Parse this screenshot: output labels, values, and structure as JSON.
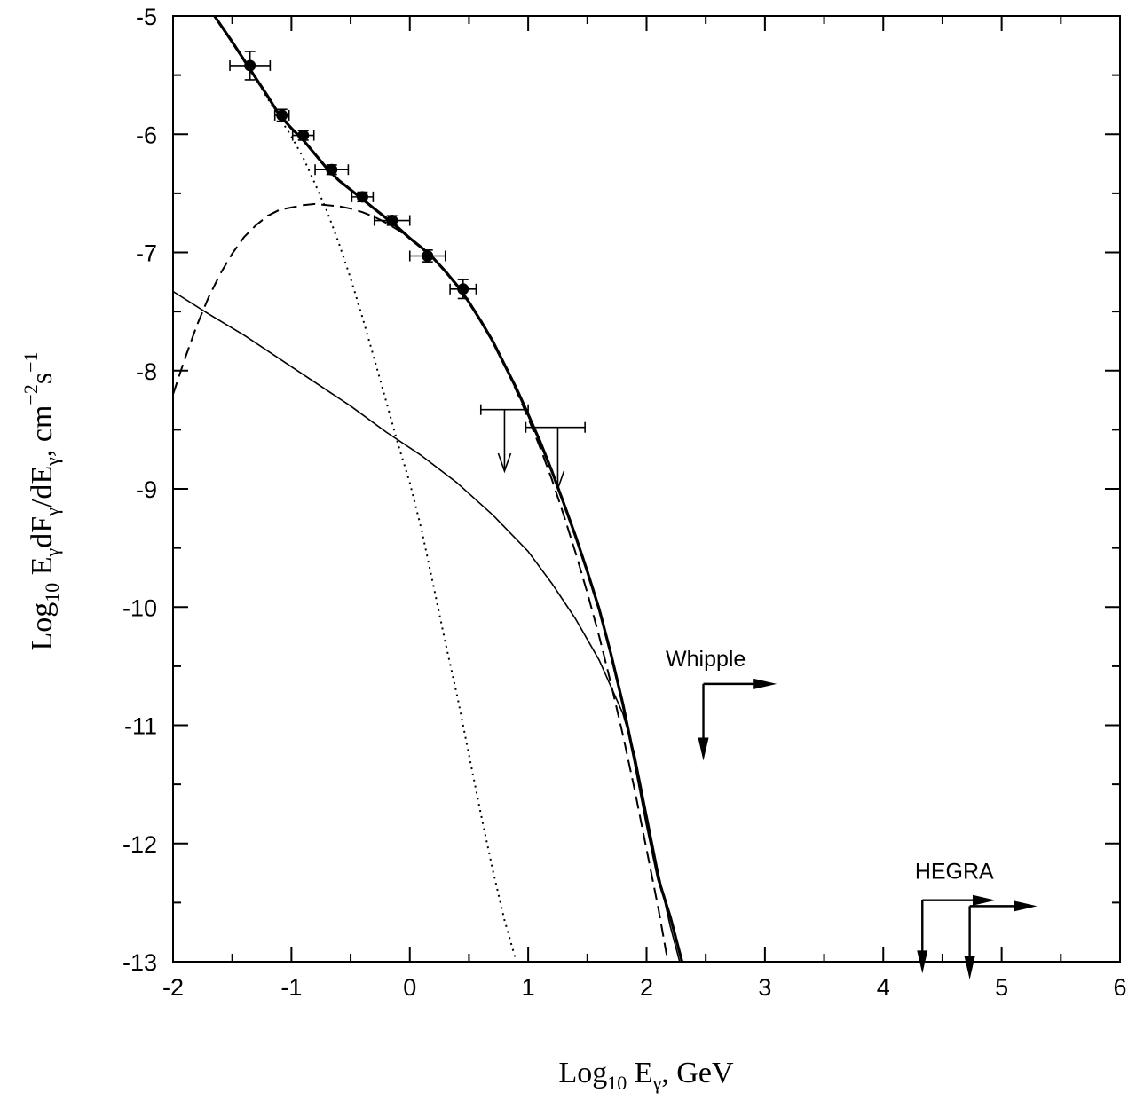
{
  "chart_data": {
    "type": "line",
    "xlabel": {
      "base": "Log",
      "sub": "10",
      "rest": " E",
      "gsub": "γ",
      "tail": ",  GeV"
    },
    "ylabel": {
      "p1": "Log",
      "s1": "10",
      "p2": "  E",
      "s2": "γ",
      "p3": "dF",
      "s3": "γ",
      "p4": "/dE",
      "s4": "γ",
      "p5": ",  cm",
      "e1": "−2",
      "p6": "s",
      "e2": "−1"
    },
    "xlim": [
      -2,
      6
    ],
    "ylim": [
      -13,
      -5
    ],
    "x_ticks": [
      -2,
      -1,
      0,
      1,
      2,
      3,
      4,
      5,
      6
    ],
    "x_tick_labels": [
      "-2",
      "-1",
      "0",
      "1",
      "2",
      "3",
      "4",
      "5",
      "6"
    ],
    "y_ticks": [
      -5,
      -6,
      -7,
      -8,
      -9,
      -10,
      -11,
      -12,
      -13
    ],
    "y_tick_labels": [
      "-5",
      "-6",
      "-7",
      "-8",
      "-9",
      "-10",
      "-11",
      "-12",
      "-13"
    ],
    "series": [
      {
        "style": "thick-solid",
        "points": [
          [
            -1.65,
            -5.0
          ],
          [
            -1.5,
            -5.22
          ],
          [
            -1.35,
            -5.45
          ],
          [
            -1.2,
            -5.68
          ],
          [
            -1.1,
            -5.84
          ],
          [
            -1.0,
            -5.95
          ],
          [
            -0.9,
            -6.05
          ],
          [
            -0.8,
            -6.17
          ],
          [
            -0.7,
            -6.29
          ],
          [
            -0.6,
            -6.39
          ],
          [
            -0.5,
            -6.47
          ],
          [
            -0.4,
            -6.55
          ],
          [
            -0.3,
            -6.63
          ],
          [
            -0.2,
            -6.71
          ],
          [
            -0.1,
            -6.79
          ],
          [
            0.0,
            -6.88
          ],
          [
            0.1,
            -6.96
          ],
          [
            0.2,
            -7.05
          ],
          [
            0.3,
            -7.16
          ],
          [
            0.4,
            -7.28
          ],
          [
            0.5,
            -7.42
          ],
          [
            0.6,
            -7.58
          ],
          [
            0.7,
            -7.75
          ],
          [
            0.8,
            -7.95
          ],
          [
            0.9,
            -8.15
          ],
          [
            1.0,
            -8.37
          ],
          [
            1.1,
            -8.6
          ],
          [
            1.2,
            -8.85
          ],
          [
            1.3,
            -9.12
          ],
          [
            1.4,
            -9.4
          ],
          [
            1.5,
            -9.7
          ],
          [
            1.6,
            -10.02
          ],
          [
            1.7,
            -10.4
          ],
          [
            1.8,
            -10.82
          ],
          [
            1.9,
            -11.3
          ],
          [
            2.0,
            -11.82
          ],
          [
            2.1,
            -12.3
          ],
          [
            2.2,
            -12.62
          ],
          [
            2.3,
            -13.0
          ]
        ]
      },
      {
        "style": "dotted",
        "points": [
          [
            -1.65,
            -5.0
          ],
          [
            -1.5,
            -5.22
          ],
          [
            -1.35,
            -5.45
          ],
          [
            -1.2,
            -5.7
          ],
          [
            -1.1,
            -5.86
          ],
          [
            -1.0,
            -6.02
          ],
          [
            -0.9,
            -6.2
          ],
          [
            -0.8,
            -6.42
          ],
          [
            -0.7,
            -6.65
          ],
          [
            -0.6,
            -6.92
          ],
          [
            -0.5,
            -7.22
          ],
          [
            -0.4,
            -7.55
          ],
          [
            -0.3,
            -7.9
          ],
          [
            -0.2,
            -8.26
          ],
          [
            -0.1,
            -8.62
          ],
          [
            0.0,
            -8.95
          ],
          [
            0.1,
            -9.35
          ],
          [
            0.2,
            -9.82
          ],
          [
            0.3,
            -10.3
          ],
          [
            0.4,
            -10.75
          ],
          [
            0.5,
            -11.25
          ],
          [
            0.6,
            -11.75
          ],
          [
            0.7,
            -12.22
          ],
          [
            0.8,
            -12.65
          ],
          [
            0.9,
            -13.0
          ]
        ]
      },
      {
        "style": "dashed",
        "points": [
          [
            -2.0,
            -8.2
          ],
          [
            -1.9,
            -7.9
          ],
          [
            -1.8,
            -7.62
          ],
          [
            -1.7,
            -7.38
          ],
          [
            -1.6,
            -7.18
          ],
          [
            -1.5,
            -7.01
          ],
          [
            -1.4,
            -6.87
          ],
          [
            -1.3,
            -6.77
          ],
          [
            -1.2,
            -6.69
          ],
          [
            -1.1,
            -6.64
          ],
          [
            -1.0,
            -6.62
          ],
          [
            -0.9,
            -6.6
          ],
          [
            -0.8,
            -6.59
          ],
          [
            -0.7,
            -6.6
          ],
          [
            -0.6,
            -6.61
          ],
          [
            -0.5,
            -6.63
          ],
          [
            -0.4,
            -6.66
          ],
          [
            -0.3,
            -6.7
          ],
          [
            -0.2,
            -6.75
          ],
          [
            -0.1,
            -6.81
          ],
          [
            0.0,
            -6.88
          ],
          [
            0.1,
            -6.96
          ],
          [
            0.2,
            -7.05
          ],
          [
            0.3,
            -7.16
          ],
          [
            0.4,
            -7.28
          ],
          [
            0.5,
            -7.42
          ],
          [
            0.6,
            -7.58
          ],
          [
            0.7,
            -7.75
          ],
          [
            0.8,
            -7.95
          ],
          [
            0.9,
            -8.17
          ],
          [
            1.0,
            -8.4
          ],
          [
            1.1,
            -8.65
          ],
          [
            1.2,
            -8.92
          ],
          [
            1.3,
            -9.22
          ],
          [
            1.4,
            -9.54
          ],
          [
            1.5,
            -9.88
          ],
          [
            1.6,
            -10.25
          ],
          [
            1.7,
            -10.65
          ],
          [
            1.8,
            -11.08
          ],
          [
            1.9,
            -11.55
          ],
          [
            2.0,
            -12.05
          ],
          [
            2.1,
            -12.55
          ],
          [
            2.18,
            -13.0
          ]
        ]
      },
      {
        "style": "thin-solid",
        "points": [
          [
            -2.0,
            -7.33
          ],
          [
            -1.7,
            -7.52
          ],
          [
            -1.4,
            -7.7
          ],
          [
            -1.1,
            -7.9
          ],
          [
            -0.8,
            -8.1
          ],
          [
            -0.5,
            -8.3
          ],
          [
            -0.2,
            -8.52
          ],
          [
            0.1,
            -8.72
          ],
          [
            0.4,
            -8.95
          ],
          [
            0.7,
            -9.22
          ],
          [
            1.0,
            -9.53
          ],
          [
            1.2,
            -9.8
          ],
          [
            1.4,
            -10.1
          ],
          [
            1.6,
            -10.45
          ],
          [
            1.8,
            -10.9
          ],
          [
            1.9,
            -11.25
          ],
          [
            2.0,
            -11.75
          ],
          [
            2.1,
            -12.25
          ],
          [
            2.2,
            -12.7
          ],
          [
            2.28,
            -13.0
          ]
        ]
      }
    ],
    "data_points": [
      {
        "x": -1.35,
        "y": -5.42,
        "xerr": 0.17,
        "yerr": 0.12
      },
      {
        "x": -1.08,
        "y": -5.84,
        "xerr": 0.06,
        "yerr": 0.05
      },
      {
        "x": -0.9,
        "y": -6.01,
        "xerr": 0.09,
        "yerr": 0.04
      },
      {
        "x": -0.66,
        "y": -6.3,
        "xerr": 0.14,
        "yerr": 0.04
      },
      {
        "x": -0.4,
        "y": -6.53,
        "xerr": 0.09,
        "yerr": 0.04
      },
      {
        "x": -0.15,
        "y": -6.73,
        "xerr": 0.15,
        "yerr": 0.04
      },
      {
        "x": 0.15,
        "y": -7.03,
        "xerr": 0.15,
        "yerr": 0.05
      },
      {
        "x": 0.45,
        "y": -7.31,
        "xerr": 0.11,
        "yerr": 0.08
      }
    ],
    "upper_limits": [
      {
        "x": 0.8,
        "y": -8.33,
        "x_low": 0.6,
        "x_high": 1.0,
        "arrow_to": -8.85
      },
      {
        "x": 1.25,
        "y": -8.48,
        "x_low": 0.98,
        "x_high": 1.48,
        "arrow_to": -9.0
      }
    ],
    "annotations": [
      {
        "text": "Whipple",
        "x": 2.5,
        "y": -10.5
      },
      {
        "text": "HEGRA",
        "x": 4.6,
        "y": -12.3
      }
    ],
    "limit_markers": [
      {
        "x": 2.48,
        "y": -10.65,
        "down_to": -11.3,
        "right_to": 3.1
      },
      {
        "x": 4.33,
        "y": -12.48,
        "down_to": -13.1,
        "right_to": 4.95
      },
      {
        "x": 4.73,
        "y": -12.53,
        "down_to": -13.15,
        "right_to": 5.3
      }
    ]
  }
}
